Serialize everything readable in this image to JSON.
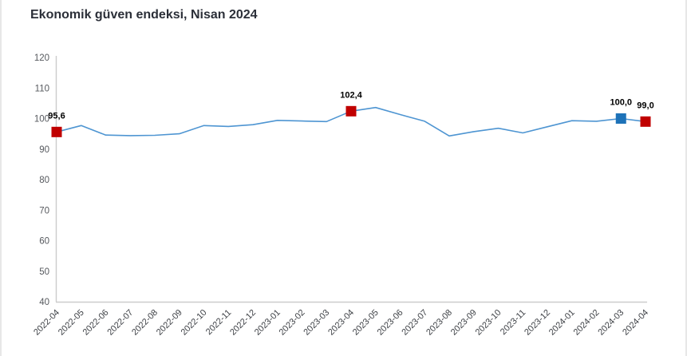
{
  "title": "Ekonomik güven endeksi, Nisan 2024",
  "chart_data": {
    "type": "line",
    "title": "Ekonomik güven endeksi, Nisan 2024",
    "x": [
      "2022-04",
      "2022-05",
      "2022-06",
      "2022-07",
      "2022-08",
      "2022-09",
      "2022-10",
      "2022-11",
      "2022-12",
      "2023-01",
      "2023-02",
      "2023-03",
      "2023-04",
      "2023-05",
      "2023-06",
      "2023-07",
      "2023-08",
      "2023-09",
      "2023-10",
      "2023-11",
      "2023-12",
      "2024-01",
      "2024-02",
      "2024-03",
      "2024-04"
    ],
    "series": [
      {
        "name": "Ekonomik güven endeksi",
        "values": [
          95.6,
          97.7,
          94.6,
          94.4,
          94.5,
          95.0,
          97.7,
          97.4,
          98.0,
          99.4,
          99.2,
          99.0,
          102.4,
          103.6,
          101.3,
          99.1,
          94.3,
          95.7,
          96.8,
          95.3,
          97.3,
          99.3,
          99.1,
          100.0,
          99.0
        ],
        "color": "#4e95d2"
      }
    ],
    "ylim": [
      40,
      120
    ],
    "yticks": [
      120,
      110,
      100,
      90,
      80,
      70,
      60,
      50,
      40
    ],
    "grid": false,
    "legend": "none",
    "xlabel": "",
    "ylabel": "",
    "markers": [
      {
        "x": "2022-04",
        "index": 0,
        "value": 95.6,
        "label": "95,6",
        "color": "#c00000"
      },
      {
        "x": "2023-04",
        "index": 12,
        "value": 102.4,
        "label": "102,4",
        "color": "#c00000"
      },
      {
        "x": "2024-03",
        "index": 23,
        "value": 100.0,
        "label": "100,0",
        "color": "#1d72b8"
      },
      {
        "x": "2024-04",
        "index": 24,
        "value": 99.0,
        "label": "99,0",
        "color": "#c00000"
      }
    ],
    "axis_color": "#cccccc",
    "y_tick_label_color": "#56595e",
    "x_tick_label_color": "#3e4146",
    "data_label_color": "#000000"
  }
}
